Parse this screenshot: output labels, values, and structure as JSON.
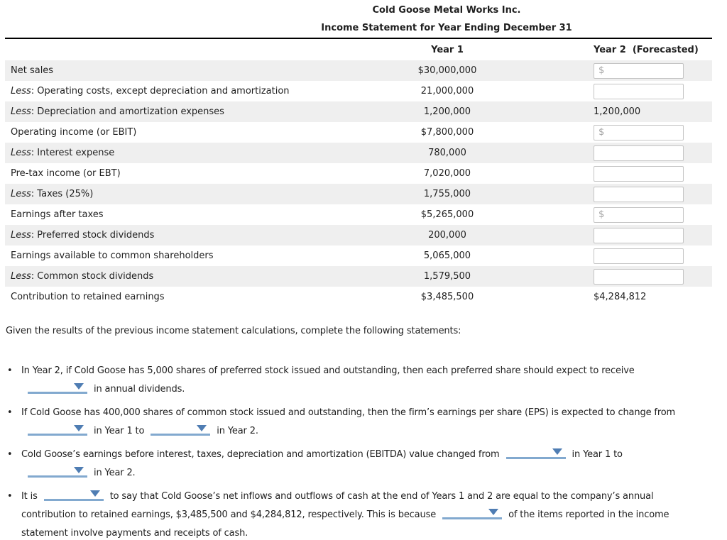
{
  "colors": {
    "row_shade": "#efefef",
    "dropdown_underline": "#82a9cf",
    "dropdown_arrow": "#4f7db3"
  },
  "header": {
    "company": "Cold Goose Metal Works Inc.",
    "subtitle": "Income Statement for Year Ending December 31",
    "col_year1": "Year 1",
    "col_year2": "Year 2  (Forecasted)"
  },
  "table": {
    "less_prefix": "Less",
    "rows": [
      {
        "less": false,
        "label": "Net sales",
        "year1": "$30,000,000",
        "year2": {
          "kind": "input",
          "placeholder": "$",
          "value": ""
        }
      },
      {
        "less": true,
        "label": "Operating costs, except depreciation and amortization",
        "year1": "21,000,000",
        "year2": {
          "kind": "input",
          "placeholder": "",
          "value": ""
        }
      },
      {
        "less": true,
        "label": "Depreciation and amortization expenses",
        "year1": "1,200,000",
        "year2": {
          "kind": "text",
          "value": "1,200,000"
        }
      },
      {
        "less": false,
        "label": "Operating income (or EBIT)",
        "year1": "$7,800,000",
        "year2": {
          "kind": "input",
          "placeholder": "$",
          "value": ""
        }
      },
      {
        "less": true,
        "label": "Interest expense",
        "year1": "780,000",
        "year2": {
          "kind": "input",
          "placeholder": "",
          "value": ""
        }
      },
      {
        "less": false,
        "label": "Pre-tax income (or EBT)",
        "year1": "7,020,000",
        "year2": {
          "kind": "input",
          "placeholder": "",
          "value": ""
        }
      },
      {
        "less": true,
        "label": "Taxes (25%)",
        "year1": "1,755,000",
        "year2": {
          "kind": "input",
          "placeholder": "",
          "value": ""
        }
      },
      {
        "less": false,
        "label": "Earnings after taxes",
        "year1": "$5,265,000",
        "year2": {
          "kind": "input",
          "placeholder": "$",
          "value": ""
        }
      },
      {
        "less": true,
        "label": "Preferred stock dividends",
        "year1": "200,000",
        "year2": {
          "kind": "input",
          "placeholder": "",
          "value": ""
        }
      },
      {
        "less": false,
        "label": "Earnings available to common shareholders",
        "year1": "5,065,000",
        "year2": {
          "kind": "input",
          "placeholder": "",
          "value": ""
        }
      },
      {
        "less": true,
        "label": "Common stock dividends",
        "year1": "1,579,500",
        "year2": {
          "kind": "input",
          "placeholder": "",
          "value": ""
        }
      },
      {
        "less": false,
        "label": "Contribution to retained earnings",
        "year1": "$3,485,500",
        "year2": {
          "kind": "text",
          "value": "$4,284,812"
        }
      }
    ]
  },
  "statements": {
    "intro": "Given the results of the previous income statement calculations, complete the following statements:",
    "bullet_glyph": "•",
    "bullets": [
      {
        "segments": [
          {
            "text": "In Year 2, if Cold Goose has 5,000 shares of preferred stock issued and outstanding, then each preferred share should expect to receive"
          },
          {
            "br": true
          },
          {
            "dd": true
          },
          {
            "text": "in annual dividends."
          }
        ]
      },
      {
        "segments": [
          {
            "text": "If Cold Goose has 400,000 shares of common stock issued and outstanding, then the firm’s earnings per share (EPS) is expected to change from"
          },
          {
            "br": true
          },
          {
            "dd": true
          },
          {
            "text": "in Year 1 to"
          },
          {
            "dd": true
          },
          {
            "text": "in Year 2."
          }
        ]
      },
      {
        "segments": [
          {
            "text": "Cold Goose’s earnings before interest, taxes, depreciation and amortization (EBITDA) value changed from"
          },
          {
            "dd": true
          },
          {
            "text": "in Year 1 to"
          },
          {
            "br": true
          },
          {
            "dd": true
          },
          {
            "text": "in Year 2."
          }
        ]
      },
      {
        "segments": [
          {
            "text": "It is"
          },
          {
            "dd": true
          },
          {
            "text": "to say that Cold Goose’s net inflows and outflows of cash at the end of Years 1 and 2 are equal to the company’s annual"
          },
          {
            "br": true
          },
          {
            "text": "contribution to retained earnings, $3,485,500 and $4,284,812, respectively. This is because"
          },
          {
            "dd": true
          },
          {
            "text": "of the items reported in the income"
          },
          {
            "br": true
          },
          {
            "text": "statement involve payments and receipts of cash."
          }
        ]
      }
    ]
  }
}
